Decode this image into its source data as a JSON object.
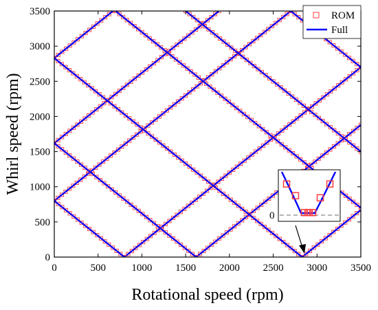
{
  "chart_data": {
    "type": "line",
    "xlabel": "Rotational speed (rpm)",
    "ylabel": "Whirl speed (rpm)",
    "xlim": [
      0,
      3500
    ],
    "ylim": [
      0,
      3500
    ],
    "x_ticks": [
      "0",
      "500",
      "1000",
      "1500",
      "2000",
      "2500",
      "3000",
      "3500"
    ],
    "y_ticks": [
      "0",
      "500",
      "1000",
      "1500",
      "2000",
      "2500",
      "3000",
      "3500"
    ],
    "grid": false,
    "legend": {
      "placement": "top-right",
      "entries": [
        {
          "label": "ROM",
          "marker": "open-square",
          "color": "#ff3b3b"
        },
        {
          "label": "Full",
          "marker": "line",
          "color": "#0000ff"
        }
      ]
    },
    "colors": {
      "rom": "#ff3b3b",
      "full": "#0000ff",
      "dashed": "#888888"
    },
    "series": [
      {
        "x": [
          0,
          2700
        ],
        "y": [
          800,
          3500
        ]
      },
      {
        "x": [
          0,
          1880
        ],
        "y": [
          1620,
          3500
        ]
      },
      {
        "x": [
          0,
          670
        ],
        "y": [
          2830,
          3500
        ]
      },
      {
        "x": [
          800,
          3500
        ],
        "y": [
          0,
          2700
        ]
      },
      {
        "x": [
          1620,
          3500
        ],
        "y": [
          0,
          1880
        ]
      },
      {
        "x": [
          2830,
          3500
        ],
        "y": [
          0,
          670
        ]
      },
      {
        "x": [
          0,
          800
        ],
        "y": [
          800,
          0
        ]
      },
      {
        "x": [
          0,
          1620
        ],
        "y": [
          1620,
          0
        ]
      },
      {
        "x": [
          0,
          2830
        ],
        "y": [
          2830,
          0
        ]
      },
      {
        "x": [
          700,
          3500
        ],
        "y": [
          3500,
          700
        ]
      },
      {
        "x": [
          1500,
          3500
        ],
        "y": [
          3500,
          1500
        ]
      },
      {
        "x": [
          2700,
          3500
        ],
        "y": [
          3500,
          2700
        ]
      }
    ],
    "inset": {
      "zero_label": "0",
      "points_y": [
        0.72,
        0.45,
        0.06,
        0.06,
        0.06,
        0.06,
        0.4,
        0.72
      ]
    }
  }
}
